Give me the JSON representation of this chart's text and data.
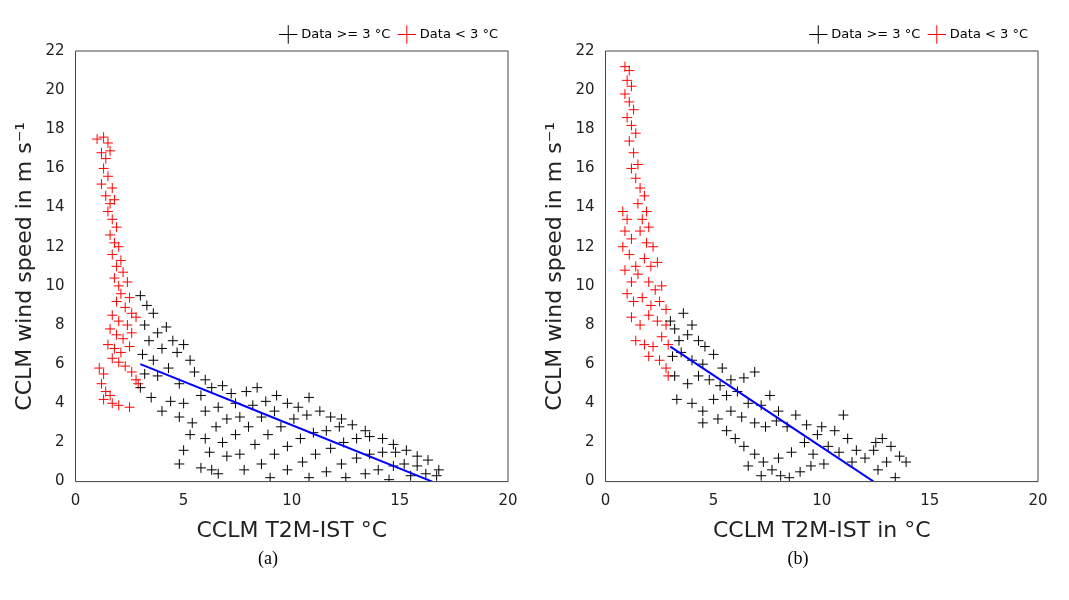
{
  "chart_data": [
    {
      "type": "scatter",
      "xlabel": "CCLM T2M-IST °C",
      "ylabel": "CCLM wind speed in m s⁻¹",
      "xlim": [
        0,
        20
      ],
      "ylim": [
        0,
        22
      ],
      "xticks": [
        0,
        5,
        10,
        15,
        20
      ],
      "yticks": [
        0,
        2,
        4,
        6,
        8,
        10,
        12,
        14,
        16,
        18,
        20,
        22
      ],
      "legend": "top right",
      "marker": "cross",
      "annotations": [
        "(a)"
      ],
      "series": [
        {
          "name": "Data >= 3 °C",
          "color": "#000000",
          "x": [
            3.0,
            3.3,
            3.6,
            3.2,
            3.8,
            4.2,
            4.5,
            3.4,
            3.1,
            3.6,
            4.0,
            4.7,
            5.0,
            5.3,
            3.2,
            3.8,
            4.3,
            4.8,
            5.5,
            6.0,
            3.0,
            3.5,
            4.4,
            5.0,
            5.8,
            6.3,
            6.8,
            7.2,
            4.0,
            4.8,
            5.4,
            6.0,
            6.6,
            7.4,
            7.9,
            8.4,
            5.3,
            6.0,
            6.5,
            7.0,
            7.6,
            8.2,
            8.8,
            9.3,
            5.0,
            6.2,
            6.8,
            7.4,
            8.0,
            8.6,
            9.2,
            9.8,
            10.3,
            10.8,
            4.8,
            6.3,
            7.0,
            7.6,
            8.3,
            8.9,
            9.5,
            10.1,
            10.7,
            11.3,
            11.8,
            12.3,
            7.8,
            8.6,
            9.2,
            9.8,
            10.4,
            11.0,
            11.6,
            12.2,
            12.8,
            13.4,
            9.0,
            9.8,
            10.5,
            11.1,
            11.8,
            12.4,
            13.0,
            13.6,
            14.2,
            14.7,
            10.8,
            11.6,
            12.3,
            13.0,
            13.6,
            14.2,
            14.8,
            15.3,
            15.8,
            12.5,
            13.4,
            14.0,
            14.7,
            15.2,
            15.8,
            16.3,
            16.8,
            14.5,
            15.5,
            16.2,
            16.7,
            6.6,
            5.8
          ],
          "values": [
            9.5,
            9.0,
            8.6,
            8.0,
            7.6,
            7.9,
            7.2,
            7.2,
            6.5,
            6.2,
            6.8,
            6.6,
            7.0,
            6.2,
            5.5,
            5.4,
            5.8,
            5.0,
            5.6,
            5.2,
            4.8,
            4.3,
            4.1,
            4.0,
            4.4,
            4.8,
            4.9,
            4.5,
            3.6,
            3.3,
            3.0,
            3.6,
            3.8,
            4.0,
            4.6,
            4.8,
            2.4,
            2.2,
            2.8,
            3.2,
            3.3,
            3.9,
            4.1,
            4.4,
            1.6,
            1.5,
            2.0,
            2.4,
            2.8,
            3.3,
            3.6,
            4.0,
            3.8,
            4.3,
            0.9,
            0.6,
            1.3,
            1.4,
            1.9,
            2.4,
            2.8,
            3.2,
            3.4,
            3.6,
            3.3,
            3.2,
            0.6,
            0.9,
            1.4,
            1.8,
            2.2,
            2.5,
            2.6,
            2.8,
            2.9,
            2.6,
            0.2,
            0.6,
            1.0,
            1.4,
            1.7,
            2.0,
            2.2,
            2.3,
            2.2,
            1.9,
            0.2,
            0.5,
            0.9,
            1.2,
            1.4,
            1.5,
            1.5,
            1.6,
            1.3,
            0.2,
            0.4,
            0.6,
            0.8,
            0.9,
            0.8,
            1.1,
            0.6,
            0.1,
            0.3,
            0.4,
            0.3,
            0.4,
            0.7
          ]
        },
        {
          "name": "Data < 3 °C",
          "color": "#ff0000",
          "x": [
            1.0,
            1.3,
            1.5,
            1.2,
            1.4,
            1.6,
            1.3,
            1.5,
            1.2,
            1.7,
            1.4,
            1.6,
            1.8,
            1.5,
            1.7,
            1.9,
            1.6,
            1.8,
            2.0,
            1.7,
            2.1,
            1.9,
            2.2,
            1.8,
            2.0,
            2.4,
            2.1,
            2.5,
            1.9,
            2.3,
            2.6,
            1.7,
            2.0,
            2.4,
            2.8,
            1.6,
            1.9,
            2.2,
            2.6,
            1.5,
            1.8,
            2.1,
            2.5,
            1.7,
            2.0,
            2.3,
            2.6,
            2.8,
            2.9,
            1.1,
            1.3,
            1.2,
            1.4,
            1.3,
            1.6,
            1.7,
            2.0,
            2.5
          ],
          "values": [
            17.5,
            17.6,
            17.3,
            16.8,
            16.5,
            16.9,
            16.0,
            15.6,
            15.2,
            15.0,
            14.6,
            14.2,
            14.4,
            13.8,
            13.4,
            13.0,
            12.6,
            12.2,
            12.0,
            11.6,
            11.3,
            11.0,
            10.7,
            10.4,
            10.0,
            10.2,
            9.6,
            9.4,
            9.2,
            8.9,
            8.6,
            8.5,
            8.2,
            8.0,
            8.4,
            7.8,
            7.5,
            7.3,
            7.6,
            7.0,
            6.8,
            6.6,
            6.9,
            6.3,
            6.1,
            5.9,
            5.6,
            5.2,
            5.0,
            5.8,
            5.5,
            5.0,
            4.6,
            4.2,
            4.4,
            4.0,
            3.9,
            3.8
          ]
        },
        {
          "type": "line",
          "marker": "none",
          "color": "#0000ff",
          "x": [
            3,
            16.5
          ],
          "values": [
            6,
            0
          ]
        }
      ]
    },
    {
      "type": "scatter",
      "xlabel": "CCLM T2M-IST in °C",
      "ylabel": "CCLM wind speed in m s⁻¹",
      "xlim": [
        0,
        20
      ],
      "ylim": [
        0,
        22
      ],
      "xticks": [
        0,
        5,
        10,
        15,
        20
      ],
      "yticks": [
        0,
        2,
        4,
        6,
        8,
        10,
        12,
        14,
        16,
        18,
        20,
        22
      ],
      "legend": "top right",
      "marker": "cross",
      "annotations": [
        "(b)"
      ],
      "series": [
        {
          "name": "Data >= 3 °C",
          "color": "#000000",
          "x": [
            3.0,
            3.2,
            3.6,
            4.0,
            3.4,
            3.8,
            4.3,
            4.6,
            3.1,
            3.5,
            4.0,
            4.5,
            5.0,
            5.4,
            3.2,
            3.8,
            4.3,
            4.8,
            5.3,
            5.8,
            6.4,
            6.9,
            3.3,
            4.0,
            4.5,
            5.0,
            5.6,
            6.1,
            6.6,
            7.2,
            7.6,
            8.0,
            4.5,
            5.2,
            5.8,
            6.3,
            6.9,
            7.4,
            7.9,
            8.4,
            8.8,
            9.3,
            5.6,
            6.0,
            6.4,
            6.9,
            7.3,
            7.7,
            8.1,
            8.5,
            9.0,
            9.5,
            8.0,
            8.6,
            9.2,
            9.8,
            10.3,
            10.8,
            9.6,
            10.1,
            10.6,
            11.2,
            11.6,
            12.0,
            11.4,
            12.4,
            12.8,
            13.2,
            13.6,
            13.9,
            13.0,
            12.6,
            13.4,
            11.0,
            12.5,
            6.6,
            7.2,
            10.0
          ],
          "values": [
            8.2,
            7.8,
            8.6,
            8.0,
            7.2,
            7.5,
            7.2,
            6.9,
            6.4,
            6.6,
            6.2,
            6.0,
            6.5,
            5.8,
            5.4,
            5.0,
            5.4,
            5.2,
            4.9,
            5.2,
            5.3,
            5.6,
            4.2,
            4.0,
            3.6,
            4.2,
            4.4,
            4.6,
            4.0,
            3.9,
            4.4,
            3.6,
            3.0,
            3.2,
            3.6,
            3.3,
            3.0,
            2.8,
            3.1,
            2.8,
            3.4,
            2.9,
            2.6,
            2.2,
            1.8,
            1.4,
            1.0,
            0.6,
            0.3,
            0.2,
            0.5,
            0.8,
            1.2,
            1.5,
            2.0,
            2.4,
            1.8,
            1.5,
            1.4,
            0.9,
            2.6,
            2.2,
            1.6,
            1.2,
            1.0,
            1.6,
            2.2,
            1.8,
            1.3,
            1.0,
            1.0,
            0.6,
            0.2,
            3.4,
            2.0,
            0.8,
            0.3,
            2.8
          ]
        },
        {
          "name": "Data < 3 °C",
          "color": "#ff0000",
          "x": [
            0.9,
            1.1,
            1.0,
            1.2,
            0.9,
            1.1,
            1.3,
            1.0,
            1.2,
            1.4,
            1.1,
            1.3,
            1.5,
            1.2,
            1.4,
            1.6,
            1.8,
            1.5,
            1.9,
            1.7,
            2.0,
            0.8,
            1.0,
            0.9,
            1.2,
            1.6,
            1.9,
            2.2,
            0.8,
            1.1,
            1.4,
            1.8,
            2.1,
            2.4,
            0.9,
            1.2,
            1.5,
            2.0,
            2.3,
            2.6,
            1.0,
            1.3,
            1.7,
            2.1,
            2.5,
            2.8,
            1.2,
            1.6,
            2.0,
            2.4,
            2.8,
            1.4,
            1.8,
            2.2,
            2.6,
            2.9,
            2.0,
            2.5,
            2.8,
            2.9
          ],
          "values": [
            21.2,
            21.0,
            20.5,
            20.2,
            19.8,
            19.4,
            19.0,
            18.6,
            18.2,
            17.8,
            17.4,
            16.8,
            16.2,
            16.0,
            15.5,
            15.0,
            14.6,
            14.2,
            13.8,
            13.4,
            13.0,
            13.8,
            13.4,
            12.8,
            12.4,
            12.8,
            12.2,
            12.0,
            12.0,
            11.6,
            11.0,
            11.4,
            11.0,
            11.2,
            10.8,
            10.2,
            10.6,
            10.2,
            9.8,
            10.0,
            9.6,
            9.2,
            9.4,
            9.0,
            9.2,
            8.8,
            8.4,
            8.0,
            8.5,
            8.2,
            8.0,
            7.2,
            7.0,
            6.9,
            7.4,
            7.0,
            6.4,
            6.2,
            5.8,
            5.4
          ]
        },
        {
          "type": "line",
          "marker": "none",
          "color": "#0000ff",
          "x": [
            3,
            12.4
          ],
          "values": [
            6.9,
            0
          ]
        }
      ]
    }
  ]
}
